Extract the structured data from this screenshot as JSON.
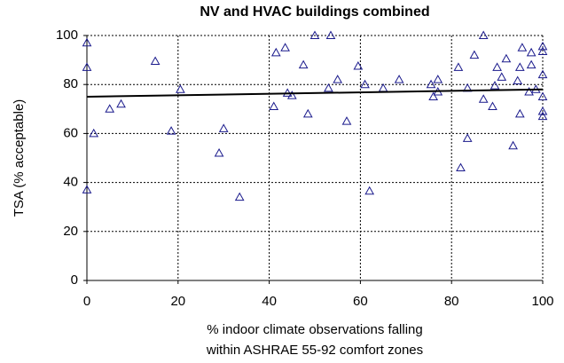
{
  "chart_data": {
    "type": "scatter",
    "title": "NV and HVAC buildings combined",
    "x_label": [
      "% indoor climate observations falling",
      "within ASHRAE 55-92 comfort zones"
    ],
    "y_label": "TSA (% acceptable)",
    "xlim": [
      0,
      100
    ],
    "ylim": [
      0,
      100
    ],
    "xticks": [
      0,
      20,
      40,
      60,
      80,
      100
    ],
    "yticks": [
      0,
      20,
      40,
      60,
      80,
      100
    ],
    "grid": true,
    "series": [
      {
        "color": "#1a1a8c",
        "x": [
          0,
          0,
          0,
          1.5,
          5,
          7.5,
          15,
          18.5,
          20.5,
          29,
          30,
          33.5,
          41,
          41.5,
          43.5,
          44,
          45,
          47.5,
          48.5,
          50,
          53,
          53.5,
          55,
          57,
          59.5,
          61,
          62,
          65,
          68.5,
          75.5,
          76,
          77,
          77,
          81.5,
          82,
          83.5,
          83.5,
          85,
          87,
          87,
          89,
          89.5,
          90,
          91,
          92,
          93.5,
          94.5,
          95,
          95,
          95.5,
          97,
          97.5,
          97.5,
          98.5,
          100,
          100,
          100,
          100,
          100,
          100
        ],
        "values": [
          97,
          87,
          37,
          60,
          70,
          72,
          89.5,
          61,
          78,
          52,
          62,
          34,
          71,
          93,
          95,
          76.5,
          75.5,
          88,
          68,
          100,
          78.5,
          100,
          82,
          65,
          87.5,
          80,
          36.5,
          78.5,
          82,
          80,
          75,
          82,
          77,
          87,
          46,
          58,
          78.5,
          92,
          100,
          74,
          71,
          79.5,
          87,
          83,
          90.5,
          55,
          81.5,
          87,
          68,
          95,
          77,
          88,
          93,
          78,
          95.5,
          93.5,
          84,
          75,
          69,
          67
        ]
      },
      {
        "type": "line",
        "color": "#000000",
        "x": [
          0,
          100
        ],
        "values": [
          75,
          78
        ]
      }
    ]
  }
}
